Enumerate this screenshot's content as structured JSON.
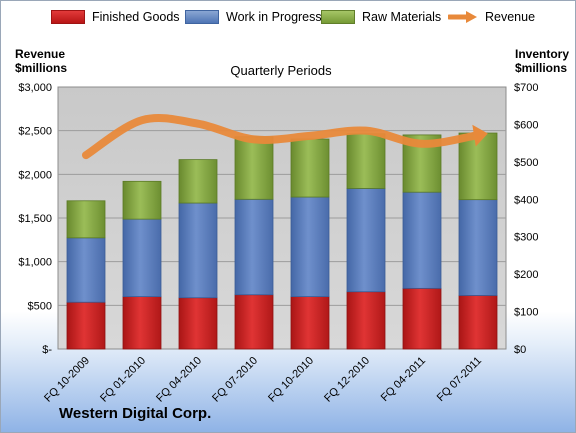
{
  "legend": {
    "finished_goods": "Finished Goods",
    "work_in_progress": "Work in Progress",
    "raw_materials": "Raw Materials",
    "revenue": "Revenue"
  },
  "left_axis_title": {
    "line1": "Revenue",
    "line2": "$millions"
  },
  "right_axis_title": {
    "line1": "Inventory",
    "line2": "$millions"
  },
  "subtitle": "Quarterly Periods",
  "company": "Western Digital Corp.",
  "colors": {
    "finished_goods": "#cc1f1f",
    "work_in_progress": "#5c80bf",
    "raw_materials": "#86a845",
    "revenue": "#e8893a"
  },
  "chart_data": {
    "type": "bar",
    "stacked": true,
    "categories": [
      "FQ 10-2009",
      "FQ 01-2010",
      "FQ 04-2010",
      "FQ 07-2010",
      "FQ 10-2010",
      "FQ 12-2010",
      "FQ 04-2011",
      "FQ 07-2011"
    ],
    "series": [
      {
        "name": "Finished Goods",
        "axis": "right",
        "values": [
          125,
          140,
          137,
          145,
          140,
          153,
          162,
          143
        ]
      },
      {
        "name": "Work in Progress",
        "axis": "right",
        "values": [
          172,
          207,
          253,
          255,
          266,
          276,
          257,
          256
        ]
      },
      {
        "name": "Raw Materials",
        "axis": "right",
        "values": [
          99,
          101,
          116,
          167,
          155,
          146,
          153,
          178
        ]
      },
      {
        "name": "Revenue",
        "type": "line",
        "axis": "left",
        "values": [
          2220,
          2620,
          2580,
          2400,
          2440,
          2500,
          2350,
          2450
        ]
      }
    ],
    "left_axis": {
      "min": 0,
      "max": 3000,
      "ticks": [
        "$-",
        "$500",
        "$1,000",
        "$1,500",
        "$2,000",
        "$2,500",
        "$3,000"
      ]
    },
    "right_axis": {
      "min": 0,
      "max": 700,
      "ticks": [
        "$0",
        "$100",
        "$200",
        "$300",
        "$400",
        "$500",
        "$600",
        "$700"
      ]
    },
    "grid": true,
    "legend_position": "top"
  }
}
